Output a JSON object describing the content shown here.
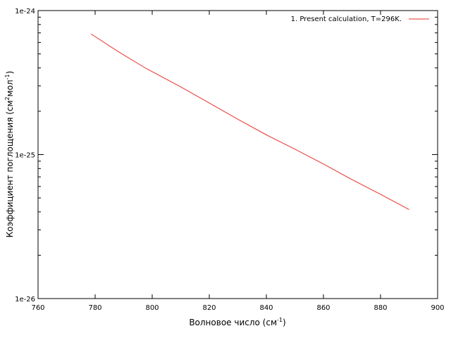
{
  "chart_data": {
    "type": "line",
    "title": "",
    "xlabel_main": "Волновое число (см",
    "xlabel_sup": "-1",
    "xlabel_end": ")",
    "ylabel_main": "Коэффициент поглощения (см",
    "ylabel_sup1": "2",
    "ylabel_mid": "мол",
    "ylabel_sup2": "-1",
    "ylabel_end": ")",
    "xlim": [
      760,
      900
    ],
    "ylim": [
      1e-26,
      1e-24
    ],
    "yscale": "log",
    "x_ticks": [
      760,
      780,
      800,
      820,
      840,
      860,
      880,
      900
    ],
    "x_tick_labels": [
      "760",
      "780",
      "800",
      "820",
      "840",
      "860",
      "880",
      "900"
    ],
    "y_major_ticks": [
      1e-26,
      1e-25,
      1e-24
    ],
    "y_tick_labels": [
      "1e-26",
      "1e-25",
      "1e-24"
    ],
    "grid": false,
    "legend_position": "top-right",
    "series": [
      {
        "name": "1. Present calculation, T=296K.",
        "color": "#e8302a",
        "x": [
          778.5,
          788,
          798,
          810,
          820,
          830,
          840,
          850,
          860,
          870,
          880,
          890
        ],
        "y": [
          6.9e-25,
          5.2e-25,
          3.95e-25,
          2.95e-25,
          2.28e-25,
          1.76e-25,
          1.37e-25,
          1.09e-25,
          8.6e-26,
          6.7e-26,
          5.3e-26,
          4.15e-26
        ]
      }
    ]
  }
}
